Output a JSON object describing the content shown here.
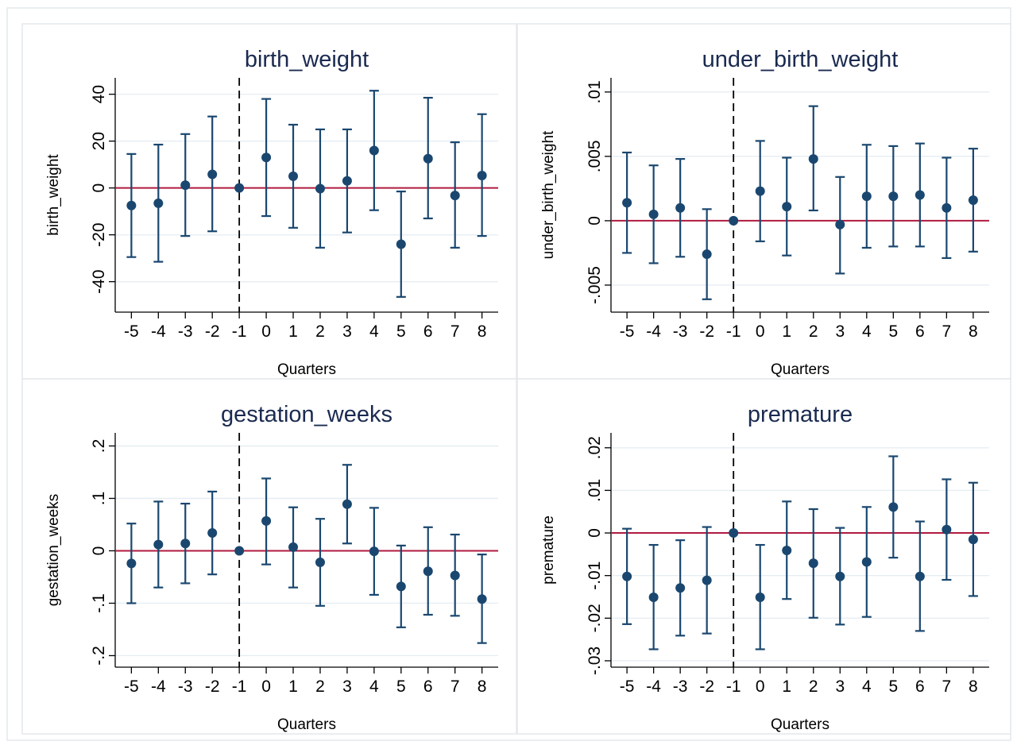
{
  "colors": {
    "marker": "#1a476f",
    "zero_line": "#b01b3f",
    "reference_line": "#000000",
    "grid": "#e6eef3",
    "title": "#1a2a50"
  },
  "chart_data": [
    {
      "type": "scatter",
      "title": "birth_weight",
      "xlabel": "Quarters",
      "ylabel": "birth_weight",
      "x": [
        -5,
        -4,
        -3,
        -2,
        -1,
        0,
        1,
        2,
        3,
        4,
        5,
        6,
        7,
        8
      ],
      "x_tick_labels": [
        "-5",
        "-4",
        "-3",
        "-2",
        "-1",
        "0",
        "1",
        "2",
        "3",
        "4",
        "5",
        "6",
        "7",
        "8"
      ],
      "estimate": [
        -7.5,
        -6.5,
        1.2,
        5.8,
        0,
        13,
        5,
        -0.3,
        3,
        16,
        -24,
        12.5,
        -3.2,
        5.3
      ],
      "ci_lower": [
        -29.5,
        -31.5,
        -20.5,
        -18.5,
        0,
        -12,
        -17,
        -25.5,
        -19,
        -9.5,
        -46.5,
        -13,
        -25.5,
        -20.5
      ],
      "ci_upper": [
        14.5,
        18.5,
        23,
        30.5,
        0,
        38,
        27,
        25,
        25,
        41.5,
        -1.5,
        38.5,
        19.5,
        31.5
      ],
      "yticks": [
        40,
        20,
        0,
        -20,
        -40
      ],
      "ytick_labels": [
        "40",
        "20",
        "0",
        "-20",
        "-40"
      ],
      "ylim": [
        -53,
        47
      ],
      "xlim": [
        -5.6,
        8.6
      ],
      "reference_x": -1,
      "reference_y": 0,
      "grid": true,
      "legend": "none"
    },
    {
      "type": "scatter",
      "title": "under_birth_weight",
      "xlabel": "Quarters",
      "ylabel": "under_birth_weight",
      "x": [
        -5,
        -4,
        -3,
        -2,
        -1,
        0,
        1,
        2,
        3,
        4,
        5,
        6,
        7,
        8
      ],
      "x_tick_labels": [
        "-5",
        "-4",
        "-3",
        "-2",
        "-1",
        "0",
        "1",
        "2",
        "3",
        "4",
        "5",
        "6",
        "7",
        "8"
      ],
      "estimate": [
        0.0014,
        0.0005,
        0.001,
        -0.0026,
        0,
        0.0023,
        0.0011,
        0.0048,
        -0.0003,
        0.0019,
        0.0019,
        0.002,
        0.001,
        0.0016
      ],
      "ci_lower": [
        -0.0025,
        -0.0033,
        -0.0028,
        -0.0061,
        0,
        -0.0016,
        -0.0027,
        0.0008,
        -0.0041,
        -0.0021,
        -0.002,
        -0.002,
        -0.0029,
        -0.0024
      ],
      "ci_upper": [
        0.0053,
        0.0043,
        0.0048,
        0.0009,
        0,
        0.0062,
        0.0049,
        0.0089,
        0.0034,
        0.0059,
        0.0058,
        0.006,
        0.0049,
        0.0056
      ],
      "yticks": [
        0.01,
        0.005,
        0,
        -0.005
      ],
      "ytick_labels": [
        ".01",
        ".005",
        "0",
        "-.005"
      ],
      "ylim": [
        -0.0071,
        0.0111
      ],
      "xlim": [
        -5.6,
        8.6
      ],
      "reference_x": -1,
      "reference_y": 0,
      "grid": true,
      "legend": "none"
    },
    {
      "type": "scatter",
      "title": "gestation_weeks",
      "xlabel": "Quarters",
      "ylabel": "gestation_weeks",
      "x": [
        -5,
        -4,
        -3,
        -2,
        -1,
        0,
        1,
        2,
        3,
        4,
        5,
        6,
        7,
        8
      ],
      "x_tick_labels": [
        "-5",
        "-4",
        "-3",
        "-2",
        "-1",
        "0",
        "1",
        "2",
        "3",
        "4",
        "5",
        "6",
        "7",
        "8"
      ],
      "estimate": [
        -0.024,
        0.012,
        0.014,
        0.034,
        0,
        0.057,
        0.007,
        -0.022,
        0.089,
        -0.001,
        -0.068,
        -0.039,
        -0.047,
        -0.092
      ],
      "ci_lower": [
        -0.1,
        -0.07,
        -0.062,
        -0.045,
        0,
        -0.026,
        -0.07,
        -0.105,
        0.014,
        -0.084,
        -0.146,
        -0.122,
        -0.124,
        -0.176
      ],
      "ci_upper": [
        0.052,
        0.094,
        0.09,
        0.113,
        0,
        0.138,
        0.083,
        0.061,
        0.164,
        0.082,
        0.01,
        0.045,
        0.031,
        -0.007
      ],
      "yticks": [
        0.2,
        0.1,
        0,
        -0.1,
        -0.2
      ],
      "ytick_labels": [
        ".2",
        ".1",
        "0",
        "-.1",
        "-.2"
      ],
      "ylim": [
        -0.222,
        0.225
      ],
      "xlim": [
        -5.6,
        8.6
      ],
      "reference_x": -1,
      "reference_y": 0,
      "grid": true,
      "legend": "none"
    },
    {
      "type": "scatter",
      "title": "premature",
      "xlabel": "Quarters",
      "ylabel": "premature",
      "x": [
        -5,
        -4,
        -3,
        -2,
        -1,
        0,
        1,
        2,
        3,
        4,
        5,
        6,
        7,
        8
      ],
      "x_tick_labels": [
        "-5",
        "-4",
        "-3",
        "-2",
        "-1",
        "0",
        "1",
        "2",
        "3",
        "4",
        "5",
        "6",
        "7",
        "8"
      ],
      "estimate": [
        -0.0102,
        -0.0151,
        -0.0129,
        -0.0111,
        0,
        -0.0151,
        -0.0041,
        -0.0071,
        -0.0102,
        -0.0068,
        0.0061,
        -0.0102,
        0.0008,
        -0.0015
      ],
      "ci_lower": [
        -0.0214,
        -0.0273,
        -0.0241,
        -0.0236,
        0,
        -0.0273,
        -0.0155,
        -0.0199,
        -0.0215,
        -0.0197,
        -0.0058,
        -0.023,
        -0.011,
        -0.0148
      ],
      "ci_upper": [
        0.001,
        -0.0028,
        -0.0017,
        0.0014,
        0,
        -0.0028,
        0.0074,
        0.0056,
        0.0012,
        0.0061,
        0.018,
        0.0027,
        0.0126,
        0.0118
      ],
      "yticks": [
        0.02,
        0.01,
        0,
        -0.01,
        -0.02,
        -0.03
      ],
      "ytick_labels": [
        ".02",
        ".01",
        "0",
        "-.01",
        "-.02",
        "-.03"
      ],
      "ylim": [
        -0.0315,
        0.0235
      ],
      "xlim": [
        -5.6,
        8.6
      ],
      "reference_x": -1,
      "reference_y": 0,
      "grid": true,
      "legend": "none"
    }
  ]
}
